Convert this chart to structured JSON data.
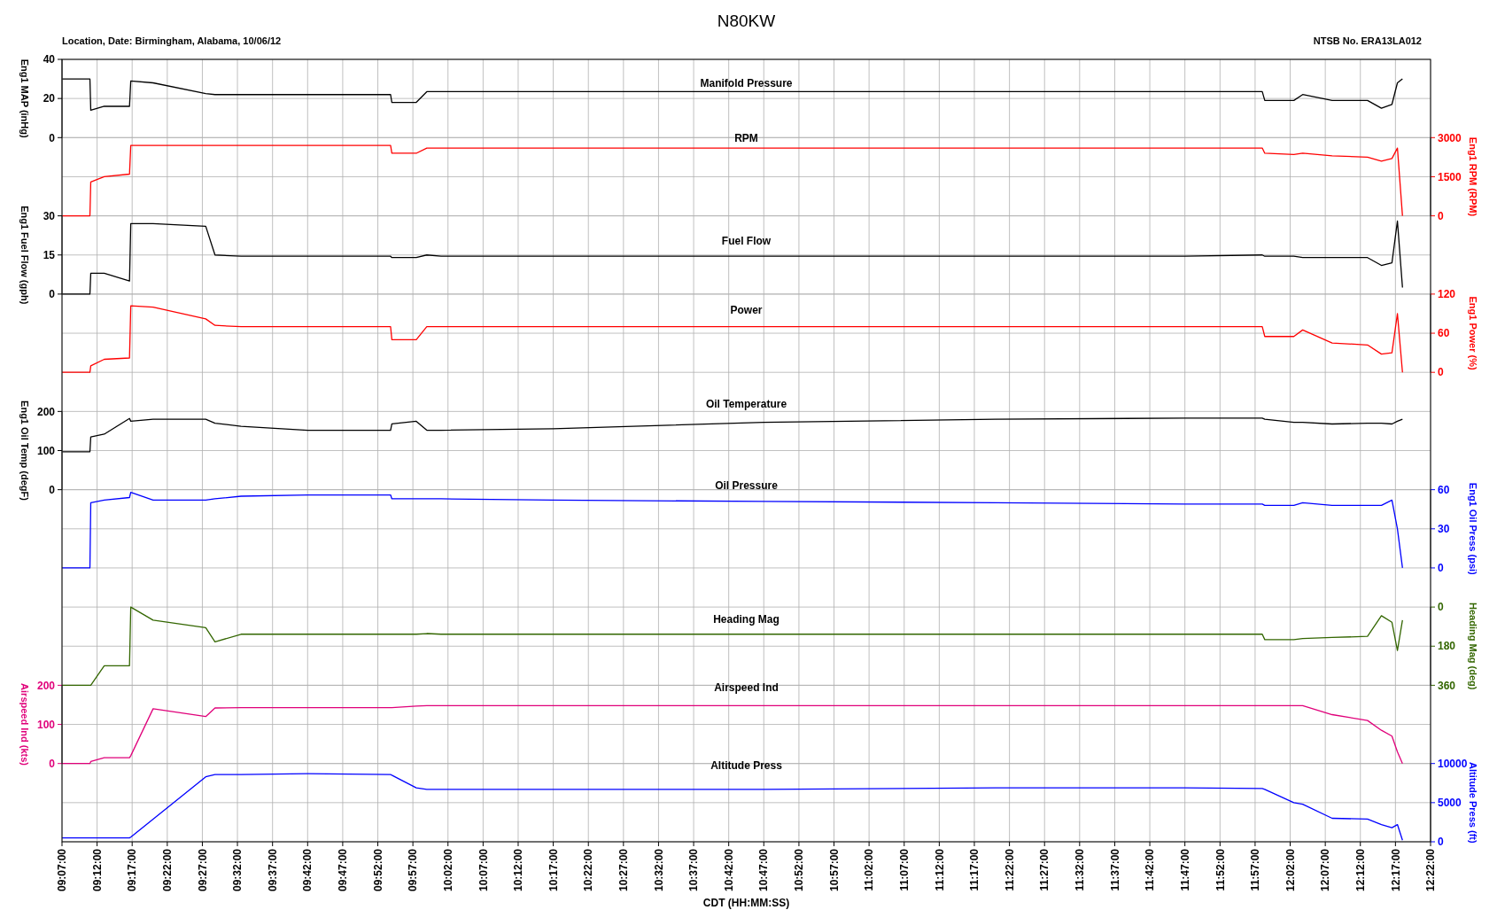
{
  "chart_data": [
    {
      "type": "line",
      "title": "N80KW",
      "annotations": [
        "Location, Date: Birmingham, Alabama, 10/06/12",
        "NTSB No. ERA13LA012"
      ],
      "grid": true,
      "tick_labels": "y",
      "x": [
        9.117,
        9.183,
        9.185,
        9.217,
        9.277,
        9.28,
        9.333,
        9.458,
        9.48,
        9.542,
        9.7,
        9.897,
        9.9,
        9.958,
        9.983,
        10.017,
        10.283,
        10.783,
        11.333,
        11.783,
        11.967,
        11.973,
        12.042,
        12.063,
        12.133,
        12.217,
        12.25,
        12.275,
        12.288,
        12.3
      ],
      "xlim": [
        9.1167,
        12.3667
      ],
      "xticks": [
        9.1167,
        9.2,
        9.2833,
        9.3667,
        9.45,
        9.5333,
        9.6167,
        9.7,
        9.7833,
        9.8667,
        9.95,
        10.0333,
        10.1167,
        10.2,
        10.2833,
        10.3667,
        10.45,
        10.5333,
        10.6167,
        10.7,
        10.7833,
        10.8667,
        10.95,
        11.0333,
        11.1167,
        11.2,
        11.2833,
        11.3667,
        11.45,
        11.5333,
        11.6167,
        11.7,
        11.7833,
        11.8667,
        11.95,
        12.0333,
        12.1167,
        12.2,
        12.2833,
        12.3667
      ],
      "ylabel": "Eng1 MAP (inHg)",
      "ylim": [
        0,
        40
      ],
      "yticks": [
        0,
        20,
        40
      ],
      "series": [
        {
          "name": "Manifold Pressure",
          "color": "#000000",
          "values": [
            30,
            30,
            14,
            16,
            16,
            29,
            28,
            22.5,
            22,
            22,
            22,
            22,
            18,
            18,
            23.5,
            23.5,
            23.5,
            23.5,
            23.5,
            23.5,
            23.5,
            19,
            19,
            22,
            19,
            19,
            15,
            17,
            28,
            30
          ]
        }
      ]
    },
    {
      "type": "line",
      "grid": true,
      "tick_labels": "y",
      "x": [
        9.117,
        9.183,
        9.185,
        9.217,
        9.277,
        9.28,
        9.333,
        9.458,
        9.48,
        9.542,
        9.7,
        9.897,
        9.9,
        9.958,
        9.983,
        10.017,
        10.283,
        10.783,
        11.333,
        11.783,
        11.967,
        11.973,
        12.042,
        12.063,
        12.133,
        12.217,
        12.25,
        12.275,
        12.288,
        12.3
      ],
      "xlim": [
        9.1167,
        12.3667
      ],
      "xticks": [
        9.1167,
        9.2,
        9.2833,
        9.3667,
        9.45,
        9.5333,
        9.6167,
        9.7,
        9.7833,
        9.8667,
        9.95,
        10.0333,
        10.1167,
        10.2,
        10.2833,
        10.3667,
        10.45,
        10.5333,
        10.6167,
        10.7,
        10.7833,
        10.8667,
        10.95,
        11.0333,
        11.1167,
        11.2,
        11.2833,
        11.3667,
        11.45,
        11.5333,
        11.6167,
        11.7,
        11.7833,
        11.8667,
        11.95,
        12.0333,
        12.1167,
        12.2,
        12.2833,
        12.3667
      ],
      "y2label": "Eng1 RPM (RPM)",
      "y2lim": [
        0,
        3000
      ],
      "y2ticks": [
        0,
        1500,
        3000
      ],
      "series": [
        {
          "name": "RPM",
          "color": "#ff0000",
          "axis": "y2",
          "values": [
            0,
            0,
            1300,
            1500,
            1600,
            2700,
            2700,
            2700,
            2700,
            2700,
            2700,
            2700,
            2400,
            2400,
            2600,
            2600,
            2600,
            2600,
            2600,
            2600,
            2600,
            2400,
            2350,
            2400,
            2300,
            2250,
            2100,
            2200,
            2600,
            0
          ]
        }
      ]
    },
    {
      "type": "line",
      "grid": true,
      "tick_labels": "y",
      "x": [
        9.117,
        9.183,
        9.185,
        9.217,
        9.277,
        9.28,
        9.333,
        9.458,
        9.48,
        9.542,
        9.7,
        9.897,
        9.9,
        9.958,
        9.983,
        10.017,
        10.283,
        10.783,
        11.333,
        11.783,
        11.967,
        11.973,
        12.042,
        12.063,
        12.133,
        12.217,
        12.25,
        12.275,
        12.288,
        12.3
      ],
      "xlim": [
        9.1167,
        12.3667
      ],
      "xticks": [
        9.1167,
        9.2,
        9.2833,
        9.3667,
        9.45,
        9.5333,
        9.6167,
        9.7,
        9.7833,
        9.8667,
        9.95,
        10.0333,
        10.1167,
        10.2,
        10.2833,
        10.3667,
        10.45,
        10.5333,
        10.6167,
        10.7,
        10.7833,
        10.8667,
        10.95,
        11.0333,
        11.1167,
        11.2,
        11.2833,
        11.3667,
        11.45,
        11.5333,
        11.6167,
        11.7,
        11.7833,
        11.8667,
        11.95,
        12.0333,
        12.1167,
        12.2,
        12.2833,
        12.3667
      ],
      "ylabel": "Eng1 Fuel Flow (gph)",
      "ylim": [
        0,
        30
      ],
      "yticks": [
        0,
        15,
        30
      ],
      "series": [
        {
          "name": "Fuel Flow",
          "color": "#000000",
          "values": [
            0,
            0,
            8,
            8,
            5,
            27,
            27,
            26,
            15,
            14.5,
            14.5,
            14.5,
            14,
            14,
            15,
            14.5,
            14.5,
            14.5,
            14.5,
            14.5,
            15,
            14.5,
            14.5,
            14,
            14,
            14,
            11,
            12,
            28,
            2.5
          ]
        }
      ]
    },
    {
      "type": "line",
      "grid": true,
      "tick_labels": "y",
      "x": [
        9.117,
        9.183,
        9.185,
        9.217,
        9.277,
        9.28,
        9.333,
        9.458,
        9.48,
        9.542,
        9.7,
        9.897,
        9.9,
        9.958,
        9.983,
        10.017,
        10.283,
        10.783,
        11.333,
        11.783,
        11.967,
        11.973,
        12.042,
        12.063,
        12.133,
        12.217,
        12.25,
        12.275,
        12.288,
        12.3
      ],
      "xlim": [
        9.1167,
        12.3667
      ],
      "xticks": [
        9.1167,
        9.2,
        9.2833,
        9.3667,
        9.45,
        9.5333,
        9.6167,
        9.7,
        9.7833,
        9.8667,
        9.95,
        10.0333,
        10.1167,
        10.2,
        10.2833,
        10.3667,
        10.45,
        10.5333,
        10.6167,
        10.7,
        10.7833,
        10.8667,
        10.95,
        11.0333,
        11.1167,
        11.2,
        11.2833,
        11.3667,
        11.45,
        11.5333,
        11.6167,
        11.7,
        11.7833,
        11.8667,
        11.95,
        12.0333,
        12.1167,
        12.2,
        12.2833,
        12.3667
      ],
      "y2label": "Eng1 Power (%)",
      "y2lim": [
        0,
        120
      ],
      "y2ticks": [
        0,
        60,
        120
      ],
      "series": [
        {
          "name": "Power",
          "color": "#ff0000",
          "axis": "y2",
          "values": [
            0,
            0,
            10,
            20,
            22,
            102,
            100,
            82,
            72,
            70,
            70,
            70,
            50,
            50,
            70,
            70,
            70,
            70,
            70,
            70,
            70,
            55,
            55,
            65,
            45,
            42,
            28,
            30,
            90,
            0
          ]
        }
      ]
    },
    {
      "type": "line",
      "grid": true,
      "tick_labels": "y",
      "x": [
        9.117,
        9.183,
        9.185,
        9.217,
        9.277,
        9.28,
        9.333,
        9.458,
        9.48,
        9.542,
        9.7,
        9.897,
        9.9,
        9.958,
        9.983,
        10.017,
        10.283,
        10.783,
        11.333,
        11.783,
        11.967,
        11.973,
        12.042,
        12.063,
        12.133,
        12.217,
        12.25,
        12.275,
        12.288,
        12.3
      ],
      "xlim": [
        9.1167,
        12.3667
      ],
      "xticks": [
        9.1167,
        9.2,
        9.2833,
        9.3667,
        9.45,
        9.5333,
        9.6167,
        9.7,
        9.7833,
        9.8667,
        9.95,
        10.0333,
        10.1167,
        10.2,
        10.2833,
        10.3667,
        10.45,
        10.5333,
        10.6167,
        10.7,
        10.7833,
        10.8667,
        10.95,
        11.0333,
        11.1167,
        11.2,
        11.2833,
        11.3667,
        11.45,
        11.5333,
        11.6167,
        11.7,
        11.7833,
        11.8667,
        11.95,
        12.0333,
        12.1167,
        12.2,
        12.2833,
        12.3667
      ],
      "ylabel": "Eng1 Oil Temp (degF)",
      "ylim": [
        0,
        200
      ],
      "yticks": [
        0,
        100,
        200
      ],
      "series": [
        {
          "name": "Oil Temperature",
          "color": "#000000",
          "values": [
            97,
            97,
            135,
            142,
            182,
            175,
            180,
            180,
            170,
            162,
            152,
            152,
            168,
            175,
            152,
            152,
            156,
            172,
            180,
            183,
            183,
            180,
            172,
            172,
            168,
            170,
            170,
            168,
            175,
            180
          ]
        }
      ]
    },
    {
      "type": "line",
      "grid": true,
      "tick_labels": "y",
      "x": [
        9.117,
        9.183,
        9.185,
        9.217,
        9.277,
        9.28,
        9.333,
        9.458,
        9.48,
        9.542,
        9.7,
        9.897,
        9.9,
        9.958,
        9.983,
        10.017,
        10.283,
        10.783,
        11.333,
        11.783,
        11.967,
        11.973,
        12.042,
        12.063,
        12.133,
        12.217,
        12.25,
        12.275,
        12.288,
        12.3
      ],
      "xlim": [
        9.1167,
        12.3667
      ],
      "xticks": [
        9.1167,
        9.2,
        9.2833,
        9.3667,
        9.45,
        9.5333,
        9.6167,
        9.7,
        9.7833,
        9.8667,
        9.95,
        10.0333,
        10.1167,
        10.2,
        10.2833,
        10.3667,
        10.45,
        10.5333,
        10.6167,
        10.7,
        10.7833,
        10.8667,
        10.95,
        11.0333,
        11.1167,
        11.2,
        11.2833,
        11.3667,
        11.45,
        11.5333,
        11.6167,
        11.7,
        11.7833,
        11.8667,
        11.95,
        12.0333,
        12.1167,
        12.2,
        12.2833,
        12.3667
      ],
      "y2label": "Eng1 Oil Press (psi)",
      "y2lim": [
        0,
        60
      ],
      "y2ticks": [
        0,
        30,
        60
      ],
      "series": [
        {
          "name": "Oil Pressure",
          "color": "#0000ff",
          "axis": "y2",
          "values": [
            0,
            0,
            50,
            52,
            54,
            58,
            52,
            52,
            53,
            55,
            56,
            56,
            53,
            53,
            53,
            53,
            52,
            51,
            50,
            49,
            49,
            48,
            48,
            50,
            48,
            48,
            48,
            52,
            30,
            0
          ]
        }
      ]
    },
    {
      "type": "line",
      "grid": true,
      "tick_labels": "y",
      "x": [
        9.117,
        9.183,
        9.185,
        9.217,
        9.277,
        9.28,
        9.333,
        9.458,
        9.48,
        9.542,
        9.7,
        9.897,
        9.9,
        9.958,
        9.983,
        10.017,
        10.283,
        10.783,
        11.333,
        11.783,
        11.967,
        11.973,
        12.042,
        12.063,
        12.133,
        12.217,
        12.25,
        12.275,
        12.288,
        12.3
      ],
      "xlim": [
        9.1167,
        12.3667
      ],
      "xticks": [
        9.1167,
        9.2,
        9.2833,
        9.3667,
        9.45,
        9.5333,
        9.6167,
        9.7,
        9.7833,
        9.8667,
        9.95,
        10.0333,
        10.1167,
        10.2,
        10.2833,
        10.3667,
        10.45,
        10.5333,
        10.6167,
        10.7,
        10.7833,
        10.8667,
        10.95,
        11.0333,
        11.1167,
        11.2,
        11.2833,
        11.3667,
        11.45,
        11.5333,
        11.6167,
        11.7,
        11.7833,
        11.8667,
        11.95,
        12.0333,
        12.1167,
        12.2,
        12.2833,
        12.3667
      ],
      "y2label": "Heading Mag (deg)",
      "y2lim": [
        360,
        0
      ],
      "y2ticks": [
        0,
        180,
        360
      ],
      "series": [
        {
          "name": "Heading Mag",
          "color": "#336600",
          "axis": "y2",
          "values": [
            360,
            360,
            360,
            270,
            270,
            0,
            60,
            95,
            160,
            125,
            125,
            125,
            125,
            125,
            122,
            125,
            125,
            125,
            125,
            125,
            125,
            150,
            150,
            145,
            140,
            135,
            40,
            70,
            200,
            60
          ]
        }
      ]
    },
    {
      "type": "line",
      "grid": true,
      "tick_labels": "y",
      "x": [
        9.117,
        9.183,
        9.185,
        9.217,
        9.277,
        9.28,
        9.333,
        9.458,
        9.48,
        9.542,
        9.7,
        9.897,
        9.9,
        9.958,
        9.983,
        10.017,
        10.283,
        10.783,
        11.333,
        11.783,
        11.967,
        11.973,
        12.042,
        12.063,
        12.133,
        12.217,
        12.25,
        12.275,
        12.288,
        12.3
      ],
      "xlim": [
        9.1167,
        12.3667
      ],
      "xticks": [
        9.1167,
        9.2,
        9.2833,
        9.3667,
        9.45,
        9.5333,
        9.6167,
        9.7,
        9.7833,
        9.8667,
        9.95,
        10.0333,
        10.1167,
        10.2,
        10.2833,
        10.3667,
        10.45,
        10.5333,
        10.6167,
        10.7,
        10.7833,
        10.8667,
        10.95,
        11.0333,
        11.1167,
        11.2,
        11.2833,
        11.3667,
        11.45,
        11.5333,
        11.6167,
        11.7,
        11.7833,
        11.8667,
        11.95,
        12.0333,
        12.1167,
        12.2,
        12.2833,
        12.3667
      ],
      "ylabel": "Airspeed Ind (kts)",
      "ylim": [
        0,
        200
      ],
      "yticks": [
        0,
        100,
        200
      ],
      "series": [
        {
          "name": "Airspeed Ind",
          "color": "#e0007a",
          "values": [
            0,
            0,
            5,
            15,
            15,
            20,
            140,
            120,
            142,
            143,
            143,
            143,
            143,
            147,
            148,
            148,
            148,
            148,
            148,
            148,
            148,
            148,
            148,
            148,
            125,
            110,
            85,
            70,
            30,
            0
          ]
        }
      ]
    },
    {
      "type": "line",
      "grid": true,
      "xlabel": "CDT (HH:MM:SS)",
      "x": [
        9.117,
        9.183,
        9.185,
        9.217,
        9.277,
        9.28,
        9.333,
        9.458,
        9.48,
        9.542,
        9.7,
        9.897,
        9.9,
        9.958,
        9.983,
        10.017,
        10.283,
        10.783,
        11.333,
        11.783,
        11.967,
        11.973,
        12.042,
        12.063,
        12.133,
        12.217,
        12.25,
        12.275,
        12.288,
        12.3
      ],
      "xlim": [
        9.1167,
        12.3667
      ],
      "xticks": [
        {
          "value": 9.1167,
          "label": "09:07:00"
        },
        {
          "value": 9.2,
          "label": "09:12:00"
        },
        {
          "value": 9.2833,
          "label": "09:17:00"
        },
        {
          "value": 9.3667,
          "label": "09:22:00"
        },
        {
          "value": 9.45,
          "label": "09:27:00"
        },
        {
          "value": 9.5333,
          "label": "09:32:00"
        },
        {
          "value": 9.6167,
          "label": "09:37:00"
        },
        {
          "value": 9.7,
          "label": "09:42:00"
        },
        {
          "value": 9.7833,
          "label": "09:47:00"
        },
        {
          "value": 9.8667,
          "label": "09:52:00"
        },
        {
          "value": 9.95,
          "label": "09:57:00"
        },
        {
          "value": 10.0333,
          "label": "10:02:00"
        },
        {
          "value": 10.1167,
          "label": "10:07:00"
        },
        {
          "value": 10.2,
          "label": "10:12:00"
        },
        {
          "value": 10.2833,
          "label": "10:17:00"
        },
        {
          "value": 10.3667,
          "label": "10:22:00"
        },
        {
          "value": 10.45,
          "label": "10:27:00"
        },
        {
          "value": 10.5333,
          "label": "10:32:00"
        },
        {
          "value": 10.6167,
          "label": "10:37:00"
        },
        {
          "value": 10.7,
          "label": "10:42:00"
        },
        {
          "value": 10.7833,
          "label": "10:47:00"
        },
        {
          "value": 10.8667,
          "label": "10:52:00"
        },
        {
          "value": 10.95,
          "label": "10:57:00"
        },
        {
          "value": 11.0333,
          "label": "11:02:00"
        },
        {
          "value": 11.1167,
          "label": "11:07:00"
        },
        {
          "value": 11.2,
          "label": "11:12:00"
        },
        {
          "value": 11.2833,
          "label": "11:17:00"
        },
        {
          "value": 11.3667,
          "label": "11:22:00"
        },
        {
          "value": 11.45,
          "label": "11:27:00"
        },
        {
          "value": 11.5333,
          "label": "11:32:00"
        },
        {
          "value": 11.6167,
          "label": "11:37:00"
        },
        {
          "value": 11.7,
          "label": "11:42:00"
        },
        {
          "value": 11.7833,
          "label": "11:47:00"
        },
        {
          "value": 11.8667,
          "label": "11:52:00"
        },
        {
          "value": 11.95,
          "label": "11:57:00"
        },
        {
          "value": 12.0333,
          "label": "12:02:00"
        },
        {
          "value": 12.1167,
          "label": "12:07:00"
        },
        {
          "value": 12.2,
          "label": "12:12:00"
        },
        {
          "value": 12.2833,
          "label": "12:17:00"
        },
        {
          "value": 12.3667,
          "label": "12:22:00"
        }
      ],
      "y2label": "Altitude Press (ft)",
      "y2lim": [
        0,
        10000
      ],
      "y2ticks": [
        0,
        5000,
        10000
      ],
      "series": [
        {
          "name": "Altitude Press",
          "color": "#0000ff",
          "axis": "y2",
          "values": [
            500,
            500,
            500,
            500,
            500,
            600,
            2900,
            8300,
            8600,
            8600,
            8700,
            8600,
            8500,
            6900,
            6700,
            6700,
            6700,
            6700,
            6900,
            6900,
            6800,
            6700,
            5000,
            4800,
            3000,
            2900,
            2200,
            1800,
            2200,
            200
          ]
        }
      ]
    }
  ]
}
